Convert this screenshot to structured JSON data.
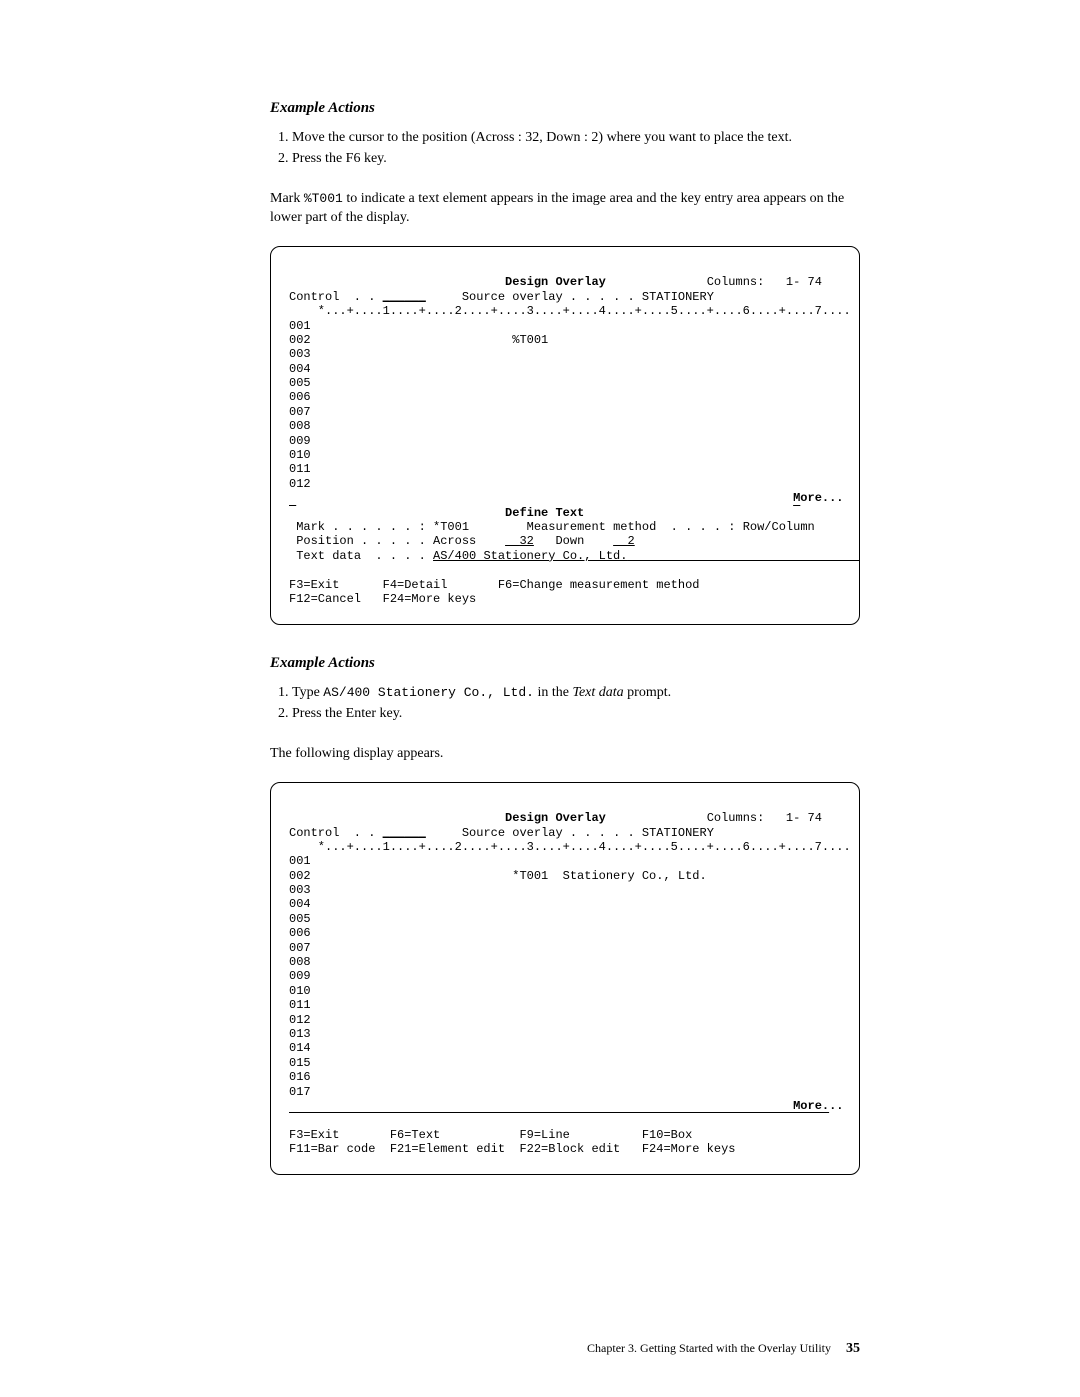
{
  "sectionA": {
    "heading": "Example Actions",
    "step1": "Move the cursor to the position (Across : 32, Down : 2) where you want to place the text.",
    "step2": "Press the F6 key."
  },
  "para1_pre": "Mark ",
  "para1_code": "%T001",
  "para1_post": " to indicate a text element appears in the image area and the key entry area appears on the lower part of the display.",
  "screen1": {
    "title": "Design Overlay",
    "columns": "Columns:   1- 74",
    "control_lbl": "Control  . .",
    "control_val": "______",
    "src_lbl": "Source overlay . . . . .",
    "src_val": "STATIONERY",
    "ruler": "    *...+....1....+....2....+....3....+....4....+....5....+....6....+....7....",
    "l001": "001",
    "l002": "002                            %T001",
    "l003": "003",
    "l004": "004",
    "l005": "005",
    "l006": "006",
    "l007": "007",
    "l008": "008",
    "l009": "009",
    "l010": "010",
    "l011": "011",
    "l012": "012",
    "more": "More...",
    "define": "Define Text",
    "mark_lbl": "Mark . . . . . . :",
    "mark_val": "*T001",
    "meas_lbl": "Measurement method  . . . . :",
    "meas_val": "Row/Column",
    "pos_lbl": "Position . . . . .",
    "pos_across_lbl": "Across",
    "pos_across_val": "32",
    "pos_down_lbl": "Down",
    "pos_down_val": "2",
    "text_lbl": "Text data  . . . .",
    "text_val": "AS/400 Stationery Co., Ltd.",
    "fk_row1": "F3=Exit      F4=Detail       F6=Change measurement method",
    "fk_row2": "F12=Cancel   F24=More keys"
  },
  "sectionB": {
    "heading": "Example Actions",
    "step1_pre": "Type ",
    "step1_code": "AS/400 Stationery Co., Ltd.",
    "step1_mid": " in the ",
    "step1_ital": "Text data",
    "step1_post": " prompt.",
    "step2": "Press the Enter key."
  },
  "para2": "The following display appears.",
  "screen2": {
    "title": "Design Overlay",
    "columns": "Columns:   1- 74",
    "control_lbl": "Control  . .",
    "control_val": "______",
    "src_lbl": "Source overlay . . . . .",
    "src_val": "STATIONERY",
    "ruler": "    *...+....1....+....2....+....3....+....4....+....5....+....6....+....7....",
    "l001": "001",
    "l002": "002                            *T001  Stationery Co., Ltd.",
    "l003": "003",
    "l004": "004",
    "l005": "005",
    "l006": "006",
    "l007": "007",
    "l008": "008",
    "l009": "009",
    "l010": "010",
    "l011": "011",
    "l012": "012",
    "l013": "013",
    "l014": "014",
    "l015": "015",
    "l016": "016",
    "l017": "017",
    "more": "More...",
    "fk_row1": "F3=Exit       F6=Text           F9=Line          F10=Box",
    "fk_row2": "F11=Bar code  F21=Element edit  F22=Block edit   F24=More keys"
  },
  "footer": {
    "chapter": "Chapter 3. Getting Started with the Overlay Utility",
    "page": "35"
  }
}
